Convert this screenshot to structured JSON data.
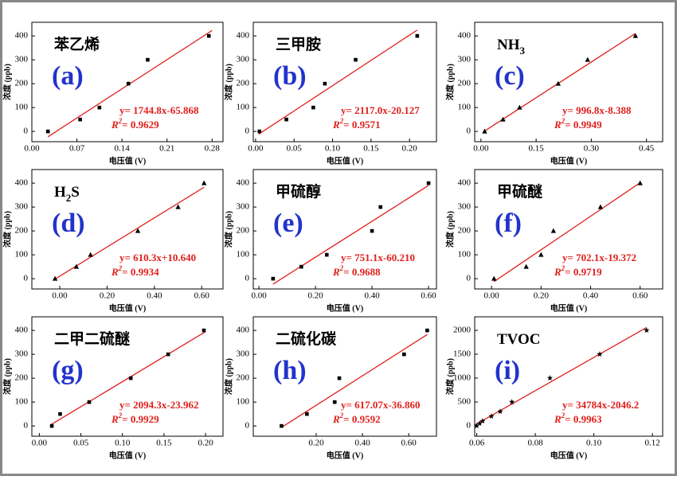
{
  "chart_data": [
    {
      "type": "scatter",
      "panel": "(a)",
      "title_parts": [
        {
          "text": "苯乙烯"
        }
      ],
      "xlabel": "电压值 (V)",
      "ylabel": "浓度 (ppb)",
      "marker": "square",
      "x": [
        0.025,
        0.075,
        0.105,
        0.15,
        0.18,
        0.275
      ],
      "values": [
        0,
        50,
        100,
        200,
        300,
        400
      ],
      "fit": {
        "slope": 1744.8,
        "intercept": -65.868,
        "x_range": [
          0.025,
          0.28
        ]
      },
      "equation": "y= 1744.8x-65.868",
      "r2": {
        "symbol": "R",
        "exponent": "2",
        "text": "= 0.9629"
      },
      "xlim": [
        0,
        0.297
      ],
      "ylim": [
        -43,
        457
      ],
      "yticks": [
        0,
        100,
        200,
        300,
        400
      ],
      "xticks": [
        {
          "value": 0,
          "label": "0.00"
        },
        {
          "value": 0.07,
          "label": "0.07"
        },
        {
          "value": 0.14,
          "label": "0.14"
        },
        {
          "value": 0.21,
          "label": "0.21"
        },
        {
          "value": 0.28,
          "label": "0.28"
        }
      ]
    },
    {
      "type": "scatter",
      "panel": "(b)",
      "title_parts": [
        {
          "text": "三甲胺"
        }
      ],
      "xlabel": "电压值 (V)",
      "ylabel": "浓度 (ppb)",
      "marker": "square",
      "x": [
        0.005,
        0.04,
        0.075,
        0.09,
        0.13,
        0.21
      ],
      "values": [
        0,
        50,
        100,
        200,
        300,
        400
      ],
      "fit": {
        "slope": 2117.0,
        "intercept": -20.127,
        "x_range": [
          0.004,
          0.21
        ]
      },
      "equation": "y= 2117.0x-20.127",
      "r2": {
        "symbol": "R",
        "exponent": "2",
        "text": "= 0.9571"
      },
      "xlim": [
        -0.003,
        0.235
      ],
      "ylim": [
        -43,
        457
      ],
      "yticks": [
        0,
        100,
        200,
        300,
        400
      ],
      "xticks": [
        {
          "value": 0,
          "label": "0.00"
        },
        {
          "value": 0.05,
          "label": "0.05"
        },
        {
          "value": 0.1,
          "label": "0.10"
        },
        {
          "value": 0.15,
          "label": "0.15"
        },
        {
          "value": 0.2,
          "label": "0.20"
        }
      ]
    },
    {
      "type": "scatter",
      "panel": "(c)",
      "title_parts": [
        {
          "text": "NH"
        },
        {
          "text": "3",
          "sub": true
        }
      ],
      "xlabel": "电压值 (V)",
      "ylabel": "浓度 (ppb)",
      "marker": "triangle",
      "x": [
        0.01,
        0.06,
        0.105,
        0.21,
        0.29,
        0.42
      ],
      "values": [
        0,
        50,
        100,
        200,
        300,
        400
      ],
      "fit": {
        "slope": 996.8,
        "intercept": -8.388,
        "x_range": [
          0.008,
          0.42
        ]
      },
      "equation": "y= 996.8x-8.388",
      "r2": {
        "symbol": "R",
        "exponent": "2",
        "text": "= 0.9949"
      },
      "xlim": [
        -0.017,
        0.494
      ],
      "ylim": [
        -43,
        457
      ],
      "yticks": [
        0,
        100,
        200,
        300,
        400
      ],
      "xticks": [
        {
          "value": 0,
          "label": "0.00"
        },
        {
          "value": 0.15,
          "label": "0.15"
        },
        {
          "value": 0.3,
          "label": "0.30"
        },
        {
          "value": 0.45,
          "label": "0.45"
        }
      ]
    },
    {
      "type": "scatter",
      "panel": "(d)",
      "title_parts": [
        {
          "text": "H"
        },
        {
          "text": "2",
          "sub": true
        },
        {
          "text": "S"
        }
      ],
      "xlabel": "电压值 (V)",
      "ylabel": "浓度 (ppb)",
      "marker": "triangle",
      "x": [
        -0.02,
        0.07,
        0.13,
        0.33,
        0.5,
        0.61
      ],
      "values": [
        0,
        50,
        100,
        200,
        300,
        400
      ],
      "fit": {
        "slope": 610.3,
        "intercept": 10.64,
        "x_range": [
          -0.02,
          0.61
        ]
      },
      "equation": "y= 610.3x+10.640",
      "r2": {
        "symbol": "R",
        "exponent": "2",
        "text": "= 0.9934"
      },
      "xlim": [
        -0.118,
        0.69
      ],
      "ylim": [
        -43,
        457
      ],
      "yticks": [
        0,
        100,
        200,
        300,
        400
      ],
      "xticks": [
        {
          "value": 0,
          "label": "0.00"
        },
        {
          "value": 0.2,
          "label": "0.20"
        },
        {
          "value": 0.4,
          "label": "0.40"
        },
        {
          "value": 0.6,
          "label": "0.60"
        }
      ]
    },
    {
      "type": "scatter",
      "panel": "(e)",
      "title_parts": [
        {
          "text": "甲硫醇"
        }
      ],
      "xlabel": "电压值 (V)",
      "ylabel": "浓度 (ppb)",
      "marker": "square",
      "x": [
        0.05,
        0.15,
        0.24,
        0.4,
        0.43,
        0.6
      ],
      "values": [
        0,
        50,
        100,
        200,
        300,
        400
      ],
      "fit": {
        "slope": 751.1,
        "intercept": -60.21,
        "x_range": [
          0.05,
          0.6
        ]
      },
      "equation": "y= 751.1x-60.210",
      "r2": {
        "symbol": "R",
        "exponent": "2",
        "text": "= 0.9688"
      },
      "xlim": [
        -0.02,
        0.628
      ],
      "ylim": [
        -43,
        457
      ],
      "yticks": [
        0,
        100,
        200,
        300,
        400
      ],
      "xticks": [
        {
          "value": 0,
          "label": "0.00"
        },
        {
          "value": 0.2,
          "label": "0.20"
        },
        {
          "value": 0.4,
          "label": "0.40"
        },
        {
          "value": 0.6,
          "label": "0.60"
        }
      ]
    },
    {
      "type": "scatter",
      "panel": "(f)",
      "title_parts": [
        {
          "text": "甲硫醚"
        }
      ],
      "xlabel": "电压值 (V)",
      "ylabel": "浓度 (ppb)",
      "marker": "triangle",
      "x": [
        0.01,
        0.14,
        0.2,
        0.25,
        0.44,
        0.6
      ],
      "values": [
        0,
        50,
        100,
        200,
        300,
        400
      ],
      "fit": {
        "slope": 702.1,
        "intercept": -19.372,
        "x_range": [
          0.01,
          0.6
        ]
      },
      "equation": "y= 702.1x-19.372",
      "r2": {
        "symbol": "R",
        "exponent": "2",
        "text": "= 0.9719"
      },
      "xlim": [
        -0.068,
        0.691
      ],
      "ylim": [
        -43,
        457
      ],
      "yticks": [
        0,
        100,
        200,
        300,
        400
      ],
      "xticks": [
        {
          "value": 0,
          "label": "0.00"
        },
        {
          "value": 0.2,
          "label": "0.20"
        },
        {
          "value": 0.4,
          "label": "0.40"
        },
        {
          "value": 0.6,
          "label": "0.60"
        }
      ]
    },
    {
      "type": "scatter",
      "panel": "(g)",
      "title_parts": [
        {
          "text": "二甲二硫醚"
        }
      ],
      "xlabel": "电压值 (V)",
      "ylabel": "浓度 (ppb)",
      "marker": "square",
      "x": [
        0.015,
        0.025,
        0.06,
        0.11,
        0.155,
        0.198
      ],
      "values": [
        0,
        50,
        100,
        200,
        300,
        400
      ],
      "fit": {
        "slope": 2094.3,
        "intercept": -23.962,
        "x_range": [
          0.014,
          0.2
        ]
      },
      "equation": "y= 2094.3x-23.962",
      "r2": {
        "symbol": "R",
        "exponent": "2",
        "text": "= 0.9929"
      },
      "xlim": [
        -0.009,
        0.221
      ],
      "ylim": [
        -43,
        457
      ],
      "yticks": [
        0,
        100,
        200,
        300,
        400
      ],
      "xticks": [
        {
          "value": 0,
          "label": "0.00"
        },
        {
          "value": 0.05,
          "label": "0.05"
        },
        {
          "value": 0.1,
          "label": "0.10"
        },
        {
          "value": 0.15,
          "label": "0.15"
        },
        {
          "value": 0.2,
          "label": "0.20"
        }
      ]
    },
    {
      "type": "scatter",
      "panel": "(h)",
      "title_parts": [
        {
          "text": "二硫化碳"
        }
      ],
      "xlabel": "电压值 (V)",
      "ylabel": "浓度 (ppb)",
      "marker": "square",
      "x": [
        0.05,
        0.16,
        0.28,
        0.3,
        0.58,
        0.68
      ],
      "values": [
        0,
        50,
        100,
        200,
        300,
        400
      ],
      "fit": {
        "slope": 617.07,
        "intercept": -36.86,
        "x_range": [
          0.05,
          0.68
        ]
      },
      "equation": "y= 617.07x-36.860",
      "r2": {
        "symbol": "R",
        "exponent": "2",
        "text": "= 0.9592"
      },
      "xlim": [
        -0.072,
        0.72
      ],
      "ylim": [
        -43,
        457
      ],
      "yticks": [
        0,
        100,
        200,
        300,
        400
      ],
      "xticks": [
        {
          "value": 0.2,
          "label": "0.20"
        },
        {
          "value": 0.4,
          "label": "0.40"
        },
        {
          "value": 0.6,
          "label": "0.60"
        }
      ]
    },
    {
      "type": "scatter",
      "panel": "(i)",
      "title_parts": [
        {
          "text": "TVOC"
        }
      ],
      "xlabel": "电压值 (V)",
      "ylabel": "浓度 (ppb)",
      "marker": "star",
      "x": [
        0.06,
        0.061,
        0.062,
        0.065,
        0.068,
        0.072,
        0.085,
        0.102,
        0.118
      ],
      "values": [
        0,
        50,
        100,
        200,
        300,
        500,
        1000,
        1500,
        2000
      ],
      "fit": {
        "slope": 34784,
        "intercept": -2046.2,
        "x_range": [
          0.0595,
          0.118
        ]
      },
      "equation": "y= 34784x-2046.2",
      "r2": {
        "symbol": "R",
        "exponent": "2",
        "text": "= 0.9963"
      },
      "xlim": [
        0.0593,
        0.1235
      ],
      "ylim": [
        -217,
        2283
      ],
      "yticks": [
        0,
        500,
        1000,
        1500,
        2000
      ],
      "xticks": [
        {
          "value": 0.06,
          "label": "0.06"
        },
        {
          "value": 0.08,
          "label": "0.08"
        },
        {
          "value": 0.1,
          "label": "0.10"
        },
        {
          "value": 0.12,
          "label": "0.12"
        }
      ]
    }
  ]
}
